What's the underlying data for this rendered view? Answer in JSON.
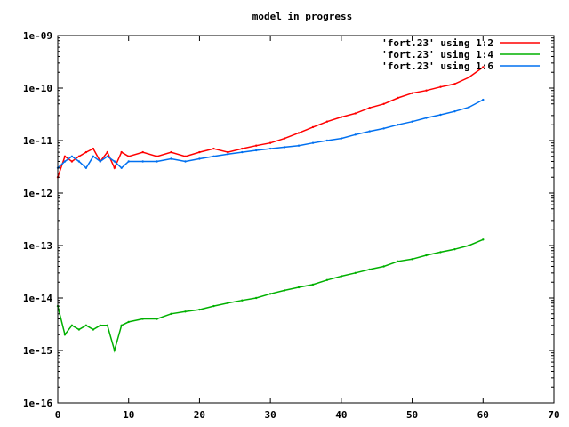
{
  "chart_data": {
    "type": "line",
    "title": "model in progress",
    "xlabel": "",
    "ylabel": "",
    "xlim": [
      0,
      70
    ],
    "ylim": [
      1e-16,
      1e-09
    ],
    "y_scale": "log",
    "grid": false,
    "legend_position": "top-right",
    "x_ticks": [
      0,
      10,
      20,
      30,
      40,
      50,
      60,
      70
    ],
    "x_tick_labels": [
      "0",
      "10",
      "20",
      "30",
      "40",
      "50",
      "60",
      "70"
    ],
    "y_ticks": [
      1e-16,
      1e-15,
      1e-14,
      1e-13,
      1e-12,
      1e-11,
      1e-10,
      1e-09
    ],
    "y_tick_labels": [
      "1e-16",
      "1e-15",
      "1e-14",
      "1e-13",
      "1e-12",
      "1e-11",
      "1e-10",
      "1e-09"
    ],
    "series": [
      {
        "name": "'fort.23' using 1:2",
        "color": "#ff0000",
        "points": [
          [
            0,
            2e-12
          ],
          [
            1,
            5e-12
          ],
          [
            2,
            4e-12
          ],
          [
            3,
            5e-12
          ],
          [
            4,
            6e-12
          ],
          [
            5,
            7e-12
          ],
          [
            6,
            4e-12
          ],
          [
            7,
            6e-12
          ],
          [
            8,
            3e-12
          ],
          [
            9,
            6e-12
          ],
          [
            10,
            5e-12
          ],
          [
            12,
            6e-12
          ],
          [
            14,
            5e-12
          ],
          [
            16,
            6e-12
          ],
          [
            18,
            5e-12
          ],
          [
            20,
            6e-12
          ],
          [
            22,
            7e-12
          ],
          [
            24,
            6e-12
          ],
          [
            26,
            7e-12
          ],
          [
            28,
            8e-12
          ],
          [
            30,
            9e-12
          ],
          [
            32,
            1.1e-11
          ],
          [
            34,
            1.4e-11
          ],
          [
            36,
            1.8e-11
          ],
          [
            38,
            2.3e-11
          ],
          [
            40,
            2.8e-11
          ],
          [
            42,
            3.3e-11
          ],
          [
            44,
            4.2e-11
          ],
          [
            46,
            5e-11
          ],
          [
            48,
            6.5e-11
          ],
          [
            50,
            8e-11
          ],
          [
            52,
            9e-11
          ],
          [
            54,
            1.05e-10
          ],
          [
            56,
            1.2e-10
          ],
          [
            58,
            1.6e-10
          ],
          [
            60,
            2.5e-10
          ]
        ]
      },
      {
        "name": "'fort.23' using 1:4",
        "color": "#00b000",
        "points": [
          [
            0,
            7e-15
          ],
          [
            1,
            2e-15
          ],
          [
            2,
            3e-15
          ],
          [
            3,
            2.5e-15
          ],
          [
            4,
            3e-15
          ],
          [
            5,
            2.5e-15
          ],
          [
            6,
            3e-15
          ],
          [
            7,
            3e-15
          ],
          [
            8,
            1e-15
          ],
          [
            9,
            3e-15
          ],
          [
            10,
            3.5e-15
          ],
          [
            12,
            4e-15
          ],
          [
            14,
            4e-15
          ],
          [
            16,
            5e-15
          ],
          [
            18,
            5.5e-15
          ],
          [
            20,
            6e-15
          ],
          [
            22,
            7e-15
          ],
          [
            24,
            8e-15
          ],
          [
            26,
            9e-15
          ],
          [
            28,
            1e-14
          ],
          [
            30,
            1.2e-14
          ],
          [
            32,
            1.4e-14
          ],
          [
            34,
            1.6e-14
          ],
          [
            36,
            1.8e-14
          ],
          [
            38,
            2.2e-14
          ],
          [
            40,
            2.6e-14
          ],
          [
            42,
            3e-14
          ],
          [
            44,
            3.5e-14
          ],
          [
            46,
            4e-14
          ],
          [
            48,
            5e-14
          ],
          [
            50,
            5.5e-14
          ],
          [
            52,
            6.5e-14
          ],
          [
            54,
            7.5e-14
          ],
          [
            56,
            8.5e-14
          ],
          [
            58,
            1e-13
          ],
          [
            60,
            1.3e-13
          ]
        ]
      },
      {
        "name": "'fort.23' using 1:6",
        "color": "#0070f0",
        "points": [
          [
            0,
            3e-12
          ],
          [
            1,
            4e-12
          ],
          [
            2,
            5e-12
          ],
          [
            3,
            4e-12
          ],
          [
            4,
            3e-12
          ],
          [
            5,
            5e-12
          ],
          [
            6,
            4e-12
          ],
          [
            7,
            5e-12
          ],
          [
            8,
            4e-12
          ],
          [
            9,
            3e-12
          ],
          [
            10,
            4e-12
          ],
          [
            12,
            4e-12
          ],
          [
            14,
            4e-12
          ],
          [
            16,
            4.5e-12
          ],
          [
            18,
            4e-12
          ],
          [
            20,
            4.5e-12
          ],
          [
            22,
            5e-12
          ],
          [
            24,
            5.5e-12
          ],
          [
            26,
            6e-12
          ],
          [
            28,
            6.5e-12
          ],
          [
            30,
            7e-12
          ],
          [
            32,
            7.5e-12
          ],
          [
            34,
            8e-12
          ],
          [
            36,
            9e-12
          ],
          [
            38,
            1e-11
          ],
          [
            40,
            1.1e-11
          ],
          [
            42,
            1.3e-11
          ],
          [
            44,
            1.5e-11
          ],
          [
            46,
            1.7e-11
          ],
          [
            48,
            2e-11
          ],
          [
            50,
            2.3e-11
          ],
          [
            52,
            2.7e-11
          ],
          [
            54,
            3.1e-11
          ],
          [
            56,
            3.6e-11
          ],
          [
            58,
            4.3e-11
          ],
          [
            60,
            6e-11
          ]
        ]
      }
    ]
  }
}
